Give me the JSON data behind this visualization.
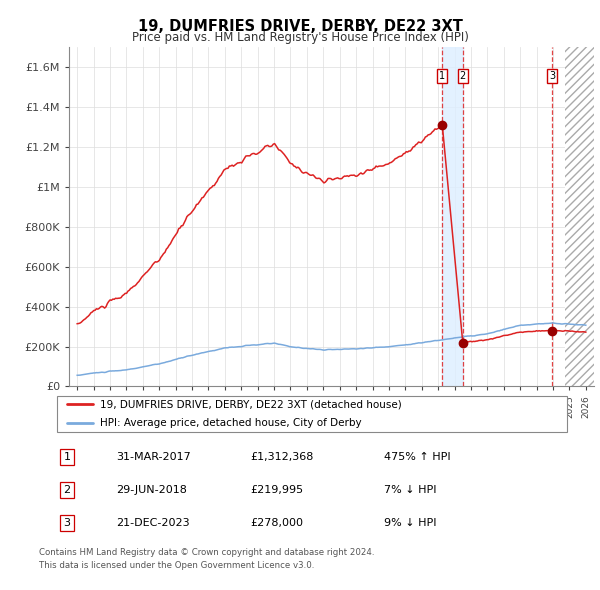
{
  "title": "19, DUMFRIES DRIVE, DERBY, DE22 3XT",
  "subtitle": "Price paid vs. HM Land Registry's House Price Index (HPI)",
  "legend_line1": "19, DUMFRIES DRIVE, DERBY, DE22 3XT (detached house)",
  "legend_line2": "HPI: Average price, detached house, City of Derby",
  "footer1": "Contains HM Land Registry data © Crown copyright and database right 2024.",
  "footer2": "This data is licensed under the Open Government Licence v3.0.",
  "transactions": [
    {
      "num": 1,
      "date": "31-MAR-2017",
      "price": "£1,312,368",
      "pct": "475% ↑ HPI",
      "x_year": 2017.25
    },
    {
      "num": 2,
      "date": "29-JUN-2018",
      "price": "£219,995",
      "pct": "7% ↓ HPI",
      "x_year": 2018.5
    },
    {
      "num": 3,
      "date": "21-DEC-2023",
      "price": "£278,000",
      "pct": "9% ↓ HPI",
      "x_year": 2023.97
    }
  ],
  "hpi_color": "#7aaadd",
  "price_color": "#dd2222",
  "transaction_dot_color": "#990000",
  "vline_color": "#dd2222",
  "vspan_color": "#ddeeff",
  "ylim": [
    0,
    1700000
  ],
  "xlim_start": 1994.5,
  "xlim_end": 2026.5,
  "yticks": [
    0,
    200000,
    400000,
    600000,
    800000,
    1000000,
    1200000,
    1400000,
    1600000
  ],
  "ytick_labels": [
    "£0",
    "£200K",
    "£400K",
    "£600K",
    "£800K",
    "£1M",
    "£1.2M",
    "£1.4M",
    "£1.6M"
  ]
}
